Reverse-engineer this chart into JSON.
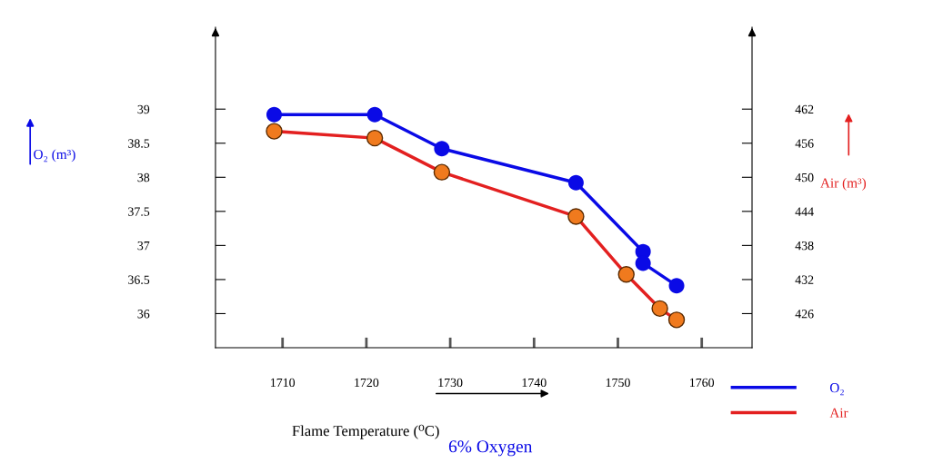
{
  "chart_data": {
    "type": "line",
    "xlabel": "Flame Temperature (⁰C)",
    "ylabel": "O₂ (m³)",
    "y2label": "Air (m³)",
    "xlim": [
      1702,
      1766
    ],
    "xticks": [
      1710,
      1720,
      1730,
      1740,
      1750,
      1760
    ],
    "ylim": [
      35.5,
      40.2
    ],
    "yticks": [
      36,
      36.5,
      37,
      37.5,
      38,
      38.5,
      39
    ],
    "y2lim": [
      420,
      476.4
    ],
    "y2ticks": [
      426,
      432,
      438,
      444,
      450,
      456,
      462
    ],
    "marker": "circle",
    "line_style": "solid",
    "grid": false,
    "legend": "bottom right",
    "annotations": [
      "6% Oxygen"
    ],
    "series": [
      {
        "name": "O₂",
        "color": "#0a0ae6",
        "x": [
          1709,
          1721,
          1729,
          1745,
          1753,
          1753,
          1757
        ],
        "values": [
          38.92,
          38.92,
          38.42,
          37.92,
          36.91,
          36.74,
          36.41
        ]
      },
      {
        "name": "Air",
        "color": "#e32020",
        "colors": [
          "#f07a1e",
          "#f07a1e",
          "#f07a1e",
          "#f07a1e",
          "#f07a1e",
          "#f07a1e",
          "#f07a1e"
        ],
        "axis": "y2",
        "x": [
          1709,
          1721,
          1729,
          1745,
          1751,
          1755,
          1757
        ],
        "values": [
          458.1,
          456.9,
          450.9,
          443.1,
          432.9,
          426.9,
          424.9
        ]
      }
    ]
  }
}
